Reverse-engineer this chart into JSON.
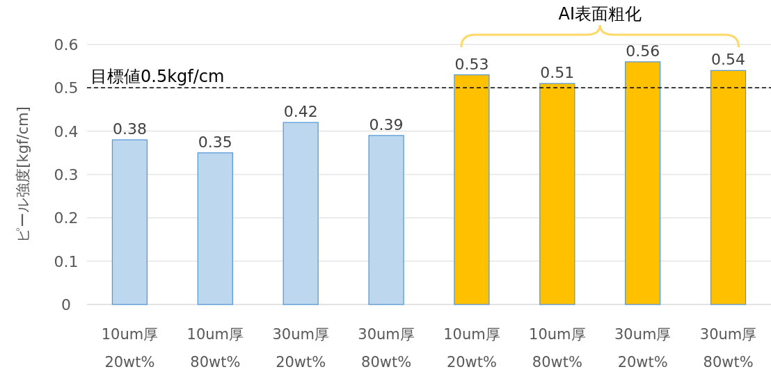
{
  "chart_data": {
    "type": "bar",
    "ylabel": "ピール強度[kgf/cm]",
    "categories": [
      "10um厚\n20wt%",
      "10um厚\n80wt%",
      "30um厚\n20wt%",
      "30um厚\n80wt%",
      "10um厚\n20wt%",
      "10um厚\n80wt%",
      "30um厚\n20wt%",
      "30um厚\n80wt%"
    ],
    "values": [
      0.38,
      0.35,
      0.42,
      0.39,
      0.53,
      0.51,
      0.56,
      0.54
    ],
    "colors": [
      "#bdd7ee",
      "#bdd7ee",
      "#bdd7ee",
      "#bdd7ee",
      "#ffc000",
      "#ffc000",
      "#ffc000",
      "#ffc000"
    ],
    "ylim": [
      0,
      0.6
    ],
    "yticks": [
      0,
      0.1,
      0.2,
      0.3,
      0.4,
      0.5,
      0.6
    ],
    "grid": "y",
    "data_labels": true,
    "ref_lines": [
      {
        "axis": "y",
        "value": 0.5,
        "label": "目標値0.5kgf/cm",
        "color": "#000000",
        "line_style": "dashed"
      }
    ],
    "annotations": [
      "AI表面粗化"
    ]
  }
}
